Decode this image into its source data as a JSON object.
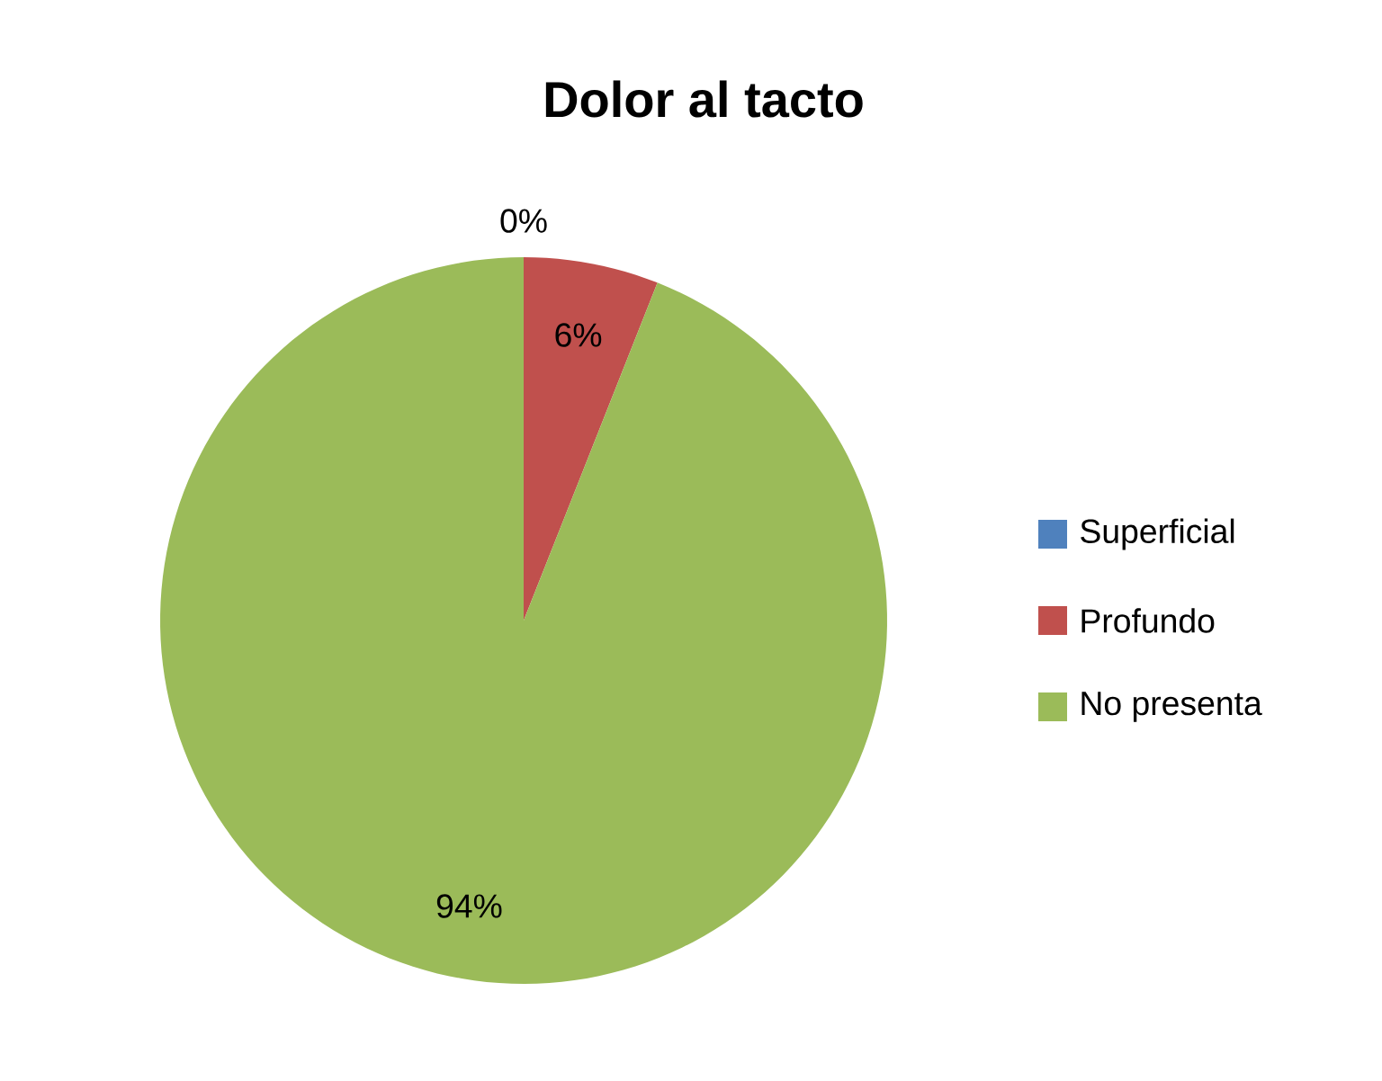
{
  "chart_data": {
    "type": "pie",
    "title": "Dolor al tacto",
    "categories": [
      "Superficial",
      "Profundo",
      "No presenta"
    ],
    "values": [
      0,
      6,
      94
    ],
    "colors": [
      "#4f81bd",
      "#c0504d",
      "#9bbb59"
    ],
    "value_labels": [
      "0%",
      "6%",
      "94%"
    ],
    "legend": "right"
  }
}
